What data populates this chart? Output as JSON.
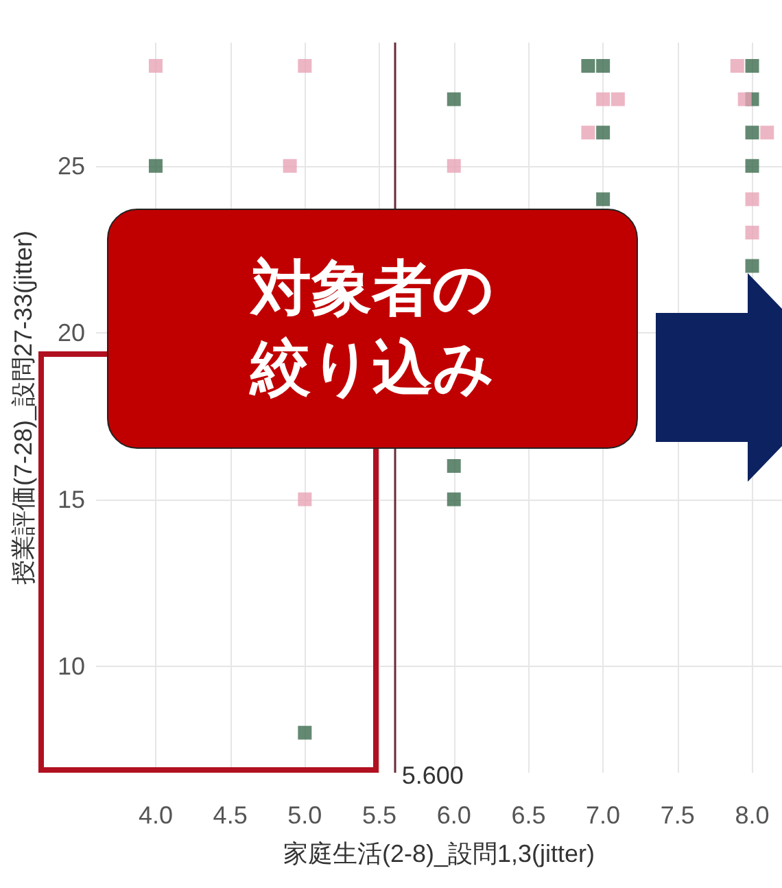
{
  "chart_data": {
    "type": "scatter",
    "xlabel": "家庭生活(2-8)_設問1,3(jitter)",
    "ylabel": "授業評価(7-28)_設問27-33(jitter)",
    "xlim": [
      3.6,
      8.2
    ],
    "xticks": [
      {
        "value": 4,
        "label": "4.0"
      },
      {
        "value": 4.5,
        "label": "4.5"
      },
      {
        "value": 5,
        "label": "5.0"
      },
      {
        "value": 5.5,
        "label": "5.5"
      },
      {
        "value": 6,
        "label": "6.0"
      },
      {
        "value": 6.5,
        "label": "6.5"
      },
      {
        "value": 7,
        "label": "7.0"
      },
      {
        "value": 7.5,
        "label": "7.5"
      },
      {
        "value": 8,
        "label": "8.0"
      }
    ],
    "ylim": [
      6.8,
      28.7
    ],
    "yticks": [
      10,
      15,
      20,
      25
    ],
    "grid": true,
    "marker": "square",
    "series": [
      {
        "color": "#3d6b4f",
        "x": [
          4.0,
          5.0,
          6.0,
          6.0,
          6.0,
          6.9,
          7.0,
          7.0,
          7.0,
          8.0,
          8.0,
          8.0,
          8.0,
          8.0
        ],
        "values": [
          25,
          8,
          27,
          16,
          15,
          28,
          28,
          26,
          24,
          28,
          27,
          26,
          25,
          22
        ]
      },
      {
        "color": "#e8a4b6",
        "x": [
          4.0,
          5.0,
          4.9,
          5.0,
          6.0,
          7.0,
          7.1,
          6.9,
          7.9,
          7.95,
          8.1,
          8.0,
          8.0
        ],
        "values": [
          28,
          28,
          25,
          15,
          25,
          27,
          27,
          26,
          28,
          27,
          26,
          24,
          23
        ]
      }
    ],
    "ref_lines": [
      {
        "axis": "x",
        "value": 5.6,
        "label": "5.600",
        "color": "#6b2b3a"
      }
    ],
    "annotations": [
      "対象者の絞り込み"
    ]
  }
}
